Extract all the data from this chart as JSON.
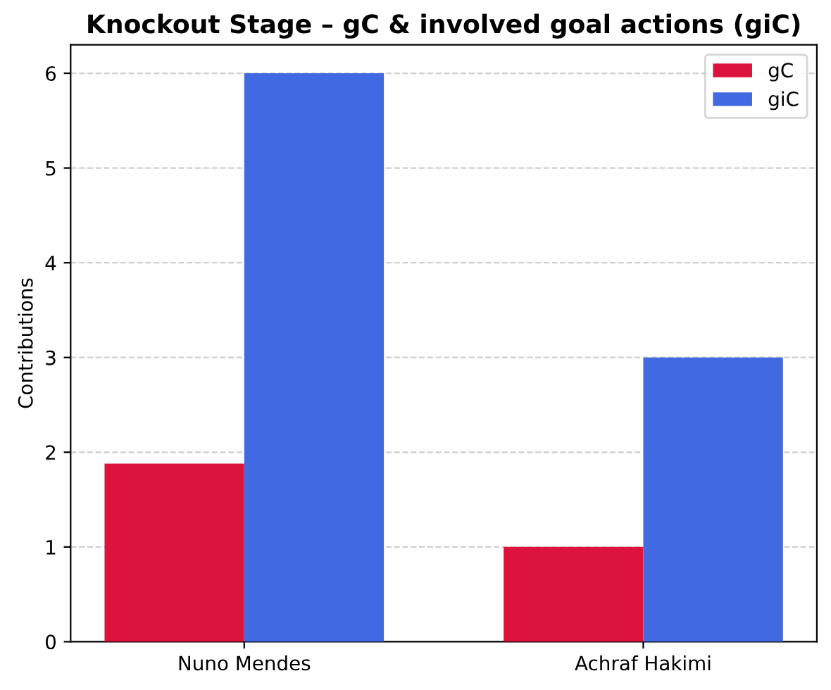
{
  "chart_data": {
    "type": "bar",
    "title": "Knockout Stage – gC & involved goal actions (giC)",
    "ylabel": "Contributions",
    "categories": [
      "Nuno Mendes",
      "Achraf Hakimi"
    ],
    "series": [
      {
        "name": "gC",
        "color": "#dc143c",
        "values": [
          1.88,
          1
        ]
      },
      {
        "name": "giC",
        "color": "#4169e1",
        "values": [
          6,
          3
        ]
      }
    ],
    "ylim": [
      0,
      6.3
    ],
    "yticks": [
      0,
      1,
      2,
      3,
      4,
      5,
      6
    ],
    "grid": "y",
    "legend": "top right"
  }
}
